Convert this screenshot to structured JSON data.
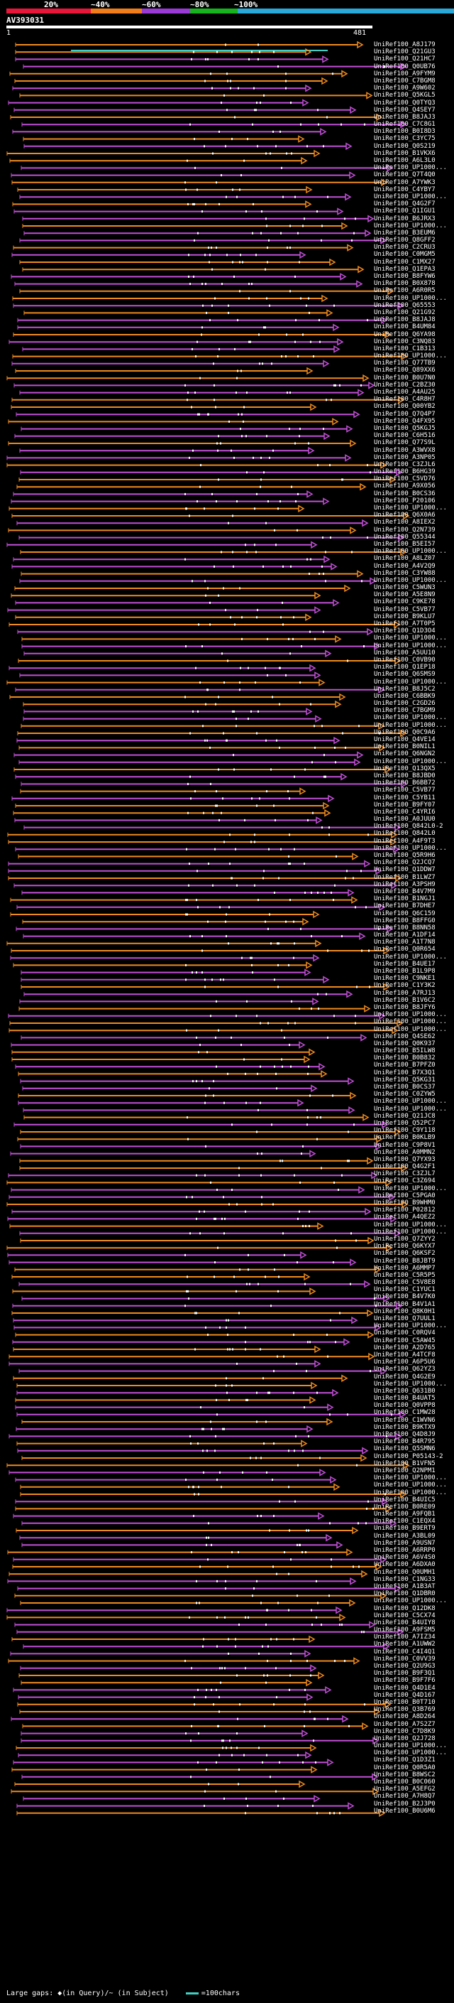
{
  "legend": {
    "labels": [
      "20%",
      "~40%",
      "~60%",
      "~80%",
      "~100%"
    ],
    "colors": [
      "#e8173a",
      "#f07d1a",
      "#9b3ad6",
      "#17b31f",
      "#2aa8d8"
    ]
  },
  "query": {
    "name": "AV393031",
    "start": "1",
    "end": "481"
  },
  "palette": {
    "orange": "#f08a1e",
    "purple": "#c24fd8",
    "teal": "#3fd0c4",
    "white": "#ffffff"
  },
  "hits": [
    "UniRef100_A8J179",
    "UniRef100_Q21GU3",
    "UniRef100_Q21HC7",
    "UniRef100_Q0UB76",
    "UniRef100_A9FYM9",
    "UniRef100_C7BGM8",
    "UniRef100_A9W602",
    "UniRef100_Q5KGL5",
    "UniRef100_Q0TYQ3",
    "UniRef100_Q4SEY7",
    "UniRef100_B8JAJ3",
    "UniRef100_C7C8G1",
    "UniRef100_B0I8D3",
    "UniRef100_C3YC75",
    "UniRef100_Q0S219",
    "UniRef100_B1VKX6",
    "UniRef100_A6L3L0",
    "UniRef100_UP1000...",
    "UniRef100_Q7T4Q0",
    "UniRef100_A7YWK3",
    "UniRef100_C4YBY7",
    "UniRef100_UP1000...",
    "UniRef100_Q4G2F7",
    "UniRef100_Q1IGU1",
    "UniRef100_B6JRX3",
    "UniRef100_UP1000...",
    "UniRef100_B3EUM6",
    "UniRef100_Q8GFF2",
    "UniRef100_C2CRU3",
    "UniRef100_C0MGM5",
    "UniRef100_C1MX27",
    "UniRef100_Q1EPA3",
    "UniRef100_B8FYW6",
    "UniRef100_B0X878",
    "UniRef100_A6R0R5",
    "UniRef100_UP1000...",
    "UniRef100_Q65553",
    "UniRef100_Q21G92",
    "UniRef100_B8JAJ8",
    "UniRef100_B4UM84",
    "UniRef100_Q6YA98",
    "UniRef100_C3NQ83",
    "UniRef100_C1B313",
    "UniRef100_UP1000...",
    "UniRef100_Q77TB9",
    "UniRef100_Q89XX6",
    "UniRef100_B0U7N0",
    "UniRef100_C2BZ30",
    "UniRef100_A4AU25",
    "UniRef100_C4R8H7",
    "UniRef100_Q00YB2",
    "UniRef100_Q7Q4P7",
    "UniRef100_Q4FX95",
    "UniRef100_Q5KGJ5",
    "UniRef100_C6H516",
    "UniRef100_Q77S9L",
    "UniRef100_A3WVX8",
    "UniRef100_A3NP05",
    "UniRef100_C3ZJL6",
    "UniRef100_B6HG39",
    "UniRef100_C5VD76",
    "UniRef100_A9X056",
    "UniRef100_B0CS36",
    "UniRef100_P20106",
    "UniRef100_UP1000...",
    "UniRef100_Q6X0A6",
    "UniRef100_A8IEX2",
    "UniRef100_Q2N739",
    "UniRef100_Q55344",
    "UniRef100_B5EI57",
    "UniRef100_UP1000...",
    "UniRef100_A8LZ07",
    "UniRef100_A4V2Q9",
    "UniRef100_C3YW88",
    "UniRef100_UP1000...",
    "UniRef100_C5WUN3",
    "UniRef100_A5E8N9",
    "UniRef100_C9KE78",
    "UniRef100_C5VB77",
    "UniRef100_B9KLU7",
    "UniRef100_A7T0P5",
    "UniRef100_Q1D3O4",
    "UniRef100_UP1000...",
    "UniRef100_UP1000...",
    "UniRef100_A5UU10",
    "UniRef100_C0VB90",
    "UniRef100_Q1EP18",
    "UniRef100_Q6SMS9",
    "UniRef100_UP1000...",
    "UniRef100_B8J5C2",
    "UniRef100_C6BBK9",
    "UniRef100_C2GD26",
    "UniRef100_C7BGM9",
    "UniRef100_UP1000...",
    "UniRef100_UP1000...",
    "UniRef100_Q0C9A6",
    "UniRef100_Q4VE14",
    "UniRef100_B0NIL1",
    "UniRef100_Q6NGN2",
    "UniRef100_UP1000...",
    "UniRef100_Q13QX5",
    "UniRef100_B8JBD0",
    "UniRef100_B6BB72",
    "UniRef100_C5VB77",
    "UniRef100_C5YB11",
    "UniRef100_B9FY07",
    "UniRef100_C4YRI6",
    "UniRef100_A0JUU0",
    "UniRef100_Q842L0-2",
    "UniRef100_Q842L0",
    "UniRef100_A4F9T3",
    "UniRef100_UP1000...",
    "UniRef100_Q5R9H6",
    "UniRef100_Q2JCQ7",
    "UniRef100_Q1DDW7",
    "UniRef100_B1LWZ7",
    "UniRef100_A3PSH9",
    "UniRef100_B4V7M9",
    "UniRef100_B1NGJ1",
    "UniRef100_B7DHE7",
    "UniRef100_Q6C159",
    "UniRef100_B8FFG0",
    "UniRef100_B8NN58",
    "UniRef100_A1DF14",
    "UniRef100_A1T7N8",
    "UniRef100_Q0R654",
    "UniRef100_UP1000...",
    "UniRef100_B4UE17",
    "UniRef100_B1L9P8",
    "UniRef100_C9NKE1",
    "UniRef100_C1Y3K2",
    "UniRef100_A7RJ13",
    "UniRef100_B1V6C2",
    "UniRef100_B8JFY6",
    "UniRef100_UP1000...",
    "UniRef100_UP1000...",
    "UniRef100_UP1000...",
    "UniRef100_Q4SE62",
    "UniRef100_Q0K937",
    "UniRef100_B5ILW8",
    "UniRef100_B0B832",
    "UniRef100_B7PFZ0",
    "UniRef100_B7X3Q1",
    "UniRef100_Q5KG31",
    "UniRef100_B0CS37",
    "UniRef100_C0ZYW5",
    "UniRef100_UP1000...",
    "UniRef100_UP1000...",
    "UniRef100_Q21JC8",
    "UniRef100_Q52PC7",
    "UniRef100_C9Y118",
    "UniRef100_B0KLB9",
    "UniRef100_C9P8V1",
    "UniRef100_A0MMN2",
    "UniRef100_Q7YX93",
    "UniRef100_Q4G2F1",
    "UniRef100_C3ZJL7",
    "UniRef100_C3Z694",
    "UniRef100_UP1000...",
    "UniRef100_C5PGA0",
    "UniRef100_B9WHM0",
    "UniRef100_P02812",
    "UniRef100_A4QEZ2",
    "UniRef100_UP1000...",
    "UniRef100_UP1000...",
    "UniRef100_Q7ZYY2",
    "UniRef100_Q6KYX7",
    "UniRef100_Q6KSF2",
    "UniRef100_B8JBT9",
    "UniRef100_A6MMP7",
    "UniRef100_C5R5P5",
    "UniRef100_C5V8E8",
    "UniRef100_C1YUC1",
    "UniRef100_B4V7K0",
    "UniRef100_B4V1A1",
    "UniRef100_Q8K0H1",
    "UniRef100_Q7UUL1",
    "UniRef100_UP1000...",
    "UniRef100_C0RQV4",
    "UniRef100_C5AW45",
    "UniRef100_A2D765",
    "UniRef100_A4TCF8",
    "UniRef100_A6P5U6",
    "UniRef100_Q62YZ3",
    "UniRef100_Q4G2E9",
    "UniRef100_UP1000...",
    "UniRef100_Q631B0",
    "UniRef100_B4UAT5",
    "UniRef100_Q0VPP8",
    "UniRef100_C1MW28",
    "UniRef100_C1WVN6",
    "UniRef100_B9KTX9",
    "UniRef100_Q4D8J9",
    "UniRef100_B4R795",
    "UniRef100_Q5SMN6",
    "UniRef100_P05143-2",
    "UniRef100_B1VFN5",
    "UniRef100_Q2NPM1",
    "UniRef100_UP1000...",
    "UniRef100_UP1000...",
    "UniRef100_UP1000...",
    "UniRef100_B4UIC5",
    "UniRef100_B0RE09",
    "UniRef100_A9FQB1",
    "UniRef100_C1EQX4",
    "UniRef100_B9ERT9",
    "UniRef100_A3BL09",
    "UniRef100_A9USN7",
    "UniRef100_A6RRP0",
    "UniRef100_A6V4S0",
    "UniRef100_A6DXA0",
    "UniRef100_Q0UMH1",
    "UniRef100_C1NG33",
    "UniRef100_A1B3AT",
    "UniRef100_Q1DBR0",
    "UniRef100_UP1000...",
    "UniRef100_Q12DK8",
    "UniRef100_C5CX74",
    "UniRef100_B4UIY8",
    "UniRef100_A9FSM5",
    "UniRef100_A7IZ34",
    "UniRef100_A1UWW2",
    "UniRef100_C4I4Q1",
    "UniRef100_C0VV39",
    "UniRef100_Q2U9G3",
    "UniRef100_B9F3Q1",
    "UniRef100_B9F7F6",
    "UniRef100_Q4D1E4",
    "UniRef100_Q4D167",
    "UniRef100_B0T710",
    "UniRef100_Q3B769",
    "UniRef100_A8D264",
    "UniRef100_A7S2Z7",
    "UniRef100_C7D8K9",
    "UniRef100_Q2J728",
    "UniRef100_UP1000...",
    "UniRef100_UP1000...",
    "UniRef100_Q1D3Z1",
    "UniRef100_Q0R5A0",
    "UniRef100_B8WSC2",
    "UniRef100_B0C060",
    "UniRef100_A5EFG2",
    "UniRef100_A7H8Q7",
    "UniRef100_B2J3P0",
    "UniRef100_B0U6M6"
  ],
  "footer": {
    "gaps_text": "Large gaps: ◆(in Query)/~ (in Subject)",
    "scale_text": "=100chars"
  }
}
